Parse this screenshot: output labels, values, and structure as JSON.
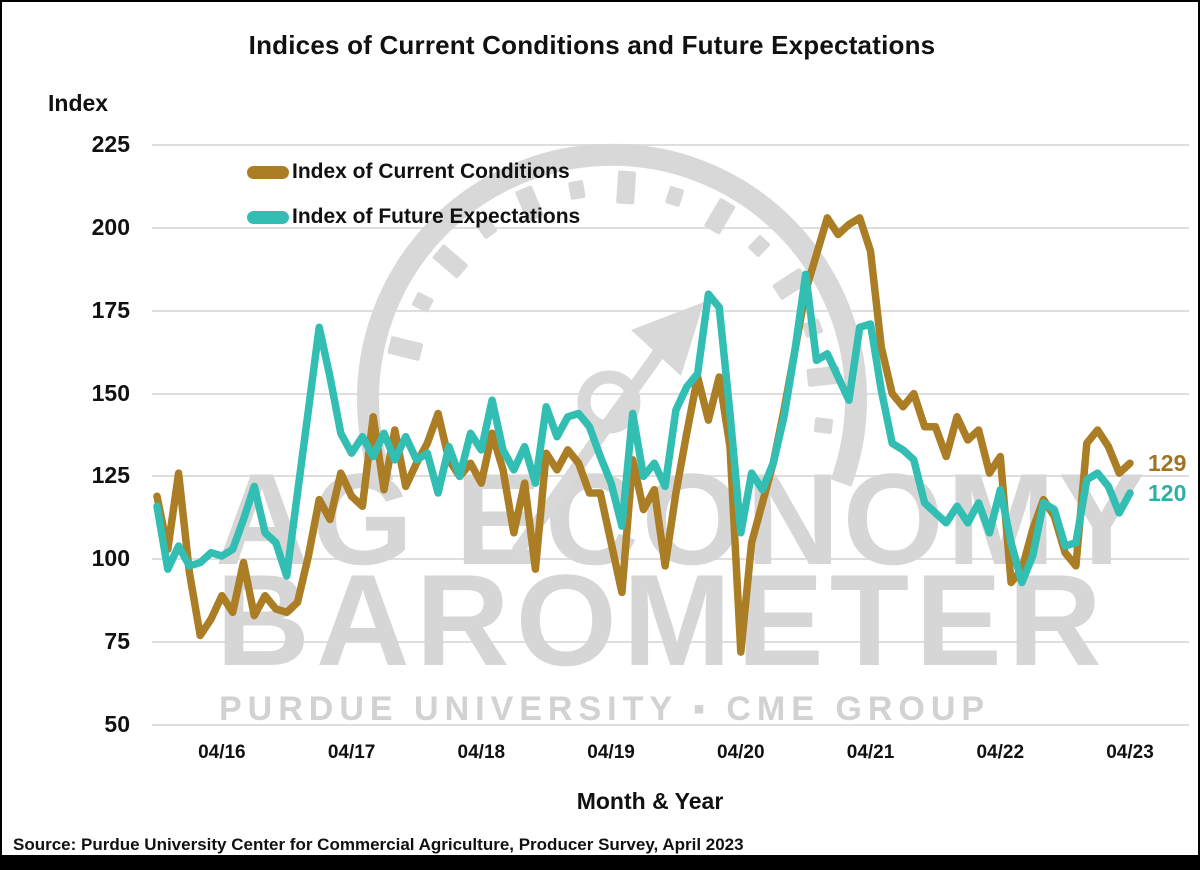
{
  "title": "Indices of Current Conditions and Future Expectations",
  "y_axis": {
    "label": "Index",
    "ticks": [
      225,
      200,
      175,
      150,
      125,
      100,
      75,
      50
    ]
  },
  "x_axis": {
    "label": "Month & Year"
  },
  "legend": {
    "items": [
      {
        "label": "Index of Current Conditions",
        "color": "#AB7D24"
      },
      {
        "label": "Index of Future Expectations",
        "color": "#32BEB2"
      }
    ]
  },
  "series_end_labels": [
    {
      "text": "129",
      "color": "#9D7523"
    },
    {
      "text": "120",
      "color": "#2FAFA5"
    }
  ],
  "source": "Source: Purdue University Center for Commercial Agriculture, Producer Survey, April 2023",
  "watermark": {
    "line1": "AG ECONOMY",
    "line2": "BAROMETER",
    "line3": "PURDUE UNIVERSITY ▪ CME GROUP"
  },
  "chart_data": {
    "type": "line",
    "title": "Indices of Current Conditions and Future Expectations",
    "xlabel": "Month & Year",
    "ylabel": "Index",
    "ylim": [
      50,
      225
    ],
    "grid": true,
    "legend_position": "top-left-inside",
    "x_unit": "month",
    "x_range": {
      "start": "2015-10",
      "end": "2023-04",
      "frequency": "monthly",
      "n_points": 91
    },
    "x_ticks": [
      {
        "label": "04/16",
        "month_index": 6
      },
      {
        "label": "04/17",
        "month_index": 18
      },
      {
        "label": "04/18",
        "month_index": 30
      },
      {
        "label": "04/19",
        "month_index": 42
      },
      {
        "label": "04/20",
        "month_index": 54
      },
      {
        "label": "04/21",
        "month_index": 66
      },
      {
        "label": "04/22",
        "month_index": 78
      },
      {
        "label": "04/23",
        "month_index": 90
      }
    ],
    "series": [
      {
        "name": "Index of Current Conditions",
        "color": "#AB7D24",
        "end_value": 129,
        "values": [
          119,
          103,
          126,
          96,
          77,
          82,
          89,
          84,
          99,
          83,
          89,
          85,
          84,
          87,
          101,
          118,
          112,
          126,
          119,
          116,
          143,
          121,
          139,
          122,
          129,
          135,
          144,
          130,
          125,
          129,
          123,
          138,
          127,
          108,
          123,
          97,
          132,
          127,
          133,
          129,
          120,
          120,
          105,
          90,
          130,
          115,
          121,
          98,
          120,
          138,
          155,
          142,
          155,
          134,
          72,
          105,
          117,
          129,
          145,
          163,
          181,
          192,
          203,
          198,
          201,
          203,
          193,
          164,
          150,
          146,
          150,
          140,
          140,
          131,
          143,
          136,
          139,
          126,
          131,
          93,
          97,
          109,
          118,
          113,
          102,
          98,
          135,
          139,
          134,
          126,
          129
        ]
      },
      {
        "name": "Index of Future Expectations",
        "color": "#32BEB2",
        "end_value": 120,
        "values": [
          116,
          97,
          104,
          98,
          99,
          102,
          101,
          103,
          112,
          122,
          108,
          105,
          95,
          120,
          145,
          170,
          155,
          138,
          132,
          137,
          131,
          138,
          130,
          137,
          130,
          132,
          120,
          134,
          125,
          138,
          133,
          148,
          133,
          127,
          134,
          123,
          146,
          137,
          143,
          144,
          140,
          131,
          123,
          110,
          144,
          125,
          129,
          122,
          145,
          152,
          156,
          180,
          176,
          144,
          108,
          126,
          121,
          129,
          143,
          163,
          186,
          160,
          162,
          155,
          148,
          170,
          171,
          151,
          135,
          133,
          130,
          117,
          114,
          111,
          116,
          111,
          117,
          108,
          121,
          105,
          93,
          101,
          117,
          115,
          104,
          105,
          124,
          126,
          122,
          114,
          120
        ]
      }
    ]
  }
}
